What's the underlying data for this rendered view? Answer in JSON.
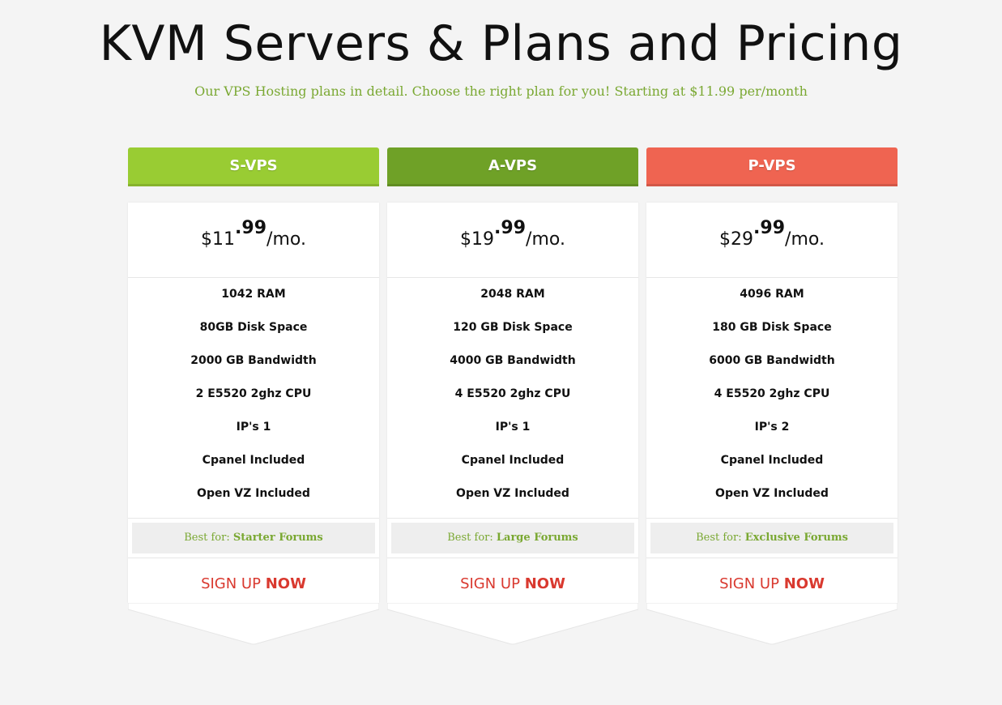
{
  "header": {
    "title": "KVM Servers & Plans and Pricing",
    "subtitle": "Our VPS Hosting plans in detail. Choose the right plan for you! Starting at $11.99 per/month"
  },
  "colors": {
    "background": "#f4f4f4",
    "subtitle": "#7aa832",
    "signup": "#d9392f"
  },
  "plans": [
    {
      "name": "S-VPS",
      "header_color": "#99cc33",
      "price_dollars": "$11",
      "price_cents": ".99",
      "price_period": "/mo.",
      "features": [
        "1042 RAM",
        "80GB Disk Space",
        "2000 GB Bandwidth",
        "2 E5520 2ghz CPU",
        "IP's 1",
        "Cpanel Included",
        "Open VZ Included"
      ],
      "best_for_label": "Best for:",
      "best_for_value": "Starter Forums",
      "signup_text": "SIGN UP",
      "signup_emphasis": "NOW"
    },
    {
      "name": "A-VPS",
      "header_color": "#6fa127",
      "price_dollars": "$19",
      "price_cents": ".99",
      "price_period": "/mo.",
      "features": [
        "2048 RAM",
        "120 GB Disk Space",
        "4000 GB Bandwidth",
        "4 E5520 2ghz CPU",
        "IP's 1",
        "Cpanel Included",
        "Open VZ Included"
      ],
      "best_for_label": "Best for:",
      "best_for_value": "Large Forums",
      "signup_text": "SIGN UP",
      "signup_emphasis": "NOW"
    },
    {
      "name": "P-VPS",
      "header_color": "#ef6451",
      "price_dollars": "$29",
      "price_cents": ".99",
      "price_period": "/mo.",
      "features": [
        "4096 RAM",
        "180 GB Disk Space",
        "6000 GB Bandwidth",
        "4 E5520 2ghz CPU",
        "IP's 2",
        "Cpanel Included",
        "Open VZ Included"
      ],
      "best_for_label": "Best for:",
      "best_for_value": "Exclusive Forums",
      "signup_text": "SIGN UP",
      "signup_emphasis": "NOW"
    }
  ]
}
